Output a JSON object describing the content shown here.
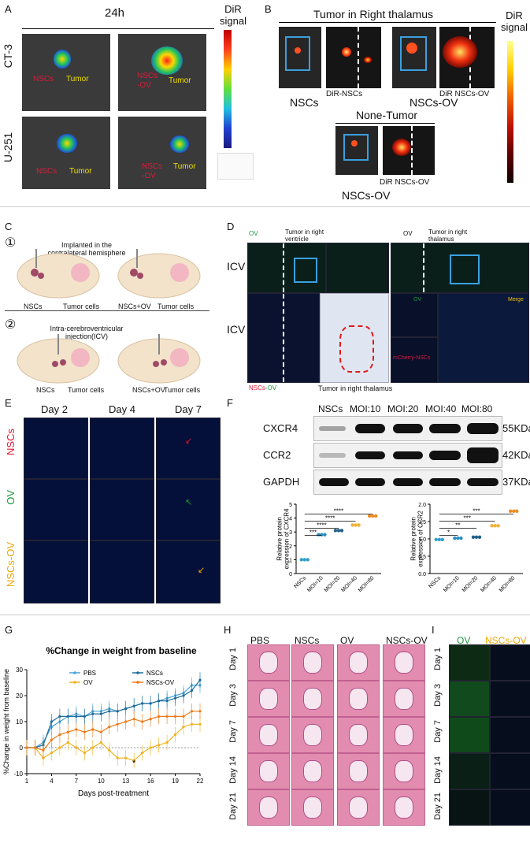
{
  "panels": {
    "A": "A",
    "B": "B",
    "C": "C",
    "D": "D",
    "E": "E",
    "F": "F",
    "G": "G",
    "H": "H",
    "I": "I"
  },
  "panelA": {
    "time": "24h",
    "rows": [
      "CT-3",
      "U-251"
    ],
    "labels": {
      "nscs": "NSCs",
      "nscs_ov": "NSCs-OV",
      "nscs_ov_split": "NSCs\n-OV",
      "tumor": "Tumor"
    },
    "scale_title": "DiR signal"
  },
  "panelB": {
    "title_top": "Tumor in Right thalamus",
    "title_bottom": "None-Tumor",
    "captions": [
      "NSCs",
      "NSCs-OV",
      "NSCs-OV"
    ],
    "sub": [
      "DiR-NSCs",
      "DiR NSCs-OV",
      "DiR NSCs-OV"
    ],
    "scale_title": "DiR signal"
  },
  "panelC": {
    "step1": "①",
    "step2": "②",
    "step1_text": "Implanted in the contralateral hemisphere",
    "step2_text": "Intra-cerebroventricular injection(ICV)",
    "labels": [
      "NSCs",
      "Tumor cells",
      "NSCs+OV",
      "Tumor cells",
      "NSCs",
      "Tumor cells",
      "NSCs+OV",
      "Tumor cells"
    ]
  },
  "panelD": {
    "ov": "OV",
    "top_left_title": "Tumor in right ventricle",
    "top_right_title": "Tumor in right thalamus",
    "row_label": "ICV",
    "bottom_caption": "Tumor in right thalamus",
    "nscs_ov": "NSCs-OV",
    "nscs_part": "NSCs",
    "ov_part": "-OV",
    "mcherry": "mCherry-NSCs",
    "merge": "Merge"
  },
  "panelE": {
    "days": [
      "Day 2",
      "Day 4",
      "Day 7"
    ],
    "rows": [
      "NSCs",
      "OV",
      "NSCs-OV"
    ],
    "row_colors": [
      "#e0162b",
      "#1a9a3a",
      "#f0a800"
    ]
  },
  "panelF": {
    "lanes": [
      "NSCs",
      "MOI:10",
      "MOI:20",
      "MOI:40",
      "MOI:80"
    ],
    "proteins": [
      {
        "name": "CXCR4",
        "kda": "55KDa"
      },
      {
        "name": "CCR2",
        "kda": "42KDa"
      },
      {
        "name": "GAPDH",
        "kda": "37KDa"
      }
    ]
  },
  "chart_data": [
    {
      "type": "scatter",
      "title": "",
      "ylabel": "Relative protein expression of CXCR4",
      "categories": [
        "NSCs",
        "MOI=10",
        "MOI=20",
        "MOI=40",
        "MOI=80"
      ],
      "values": [
        1.0,
        2.8,
        3.1,
        3.5,
        4.15
      ],
      "ylim": [
        0,
        5
      ],
      "yticks": [
        "0",
        "1",
        "2",
        "3",
        "4",
        "5"
      ],
      "significance": [
        "***",
        "****",
        "****",
        "****"
      ],
      "colors": [
        "#2fa0c8",
        "#2a8fbf",
        "#1f5f8b",
        "#f0b23a",
        "#f08a1e"
      ]
    },
    {
      "type": "scatter",
      "title": "",
      "ylabel": "Relative protein expression of CCR2",
      "categories": [
        "NSCs",
        "MOI=10",
        "MOI=20",
        "MOI=40",
        "MOI=80"
      ],
      "values": [
        0.98,
        1.02,
        1.05,
        1.38,
        1.8
      ],
      "ylim": [
        0,
        2.0
      ],
      "yticks": [
        "0.0",
        "0.5",
        "1.0",
        "1.5",
        "2.0"
      ],
      "significance": [
        "*",
        "**",
        "***",
        "***"
      ],
      "colors": [
        "#2fa0c8",
        "#2a8fbf",
        "#1f5f8b",
        "#f0b23a",
        "#f08a1e"
      ]
    },
    {
      "type": "line",
      "title": "%Change in weight from baseline",
      "xlabel": "Days post-treatment",
      "ylabel": "%Change in weight from baseline",
      "xticks": [
        1,
        4,
        7,
        10,
        13,
        16,
        19,
        22
      ],
      "ylim": [
        -10,
        30
      ],
      "yticks": [
        "-10",
        "0",
        "10",
        "20",
        "30"
      ],
      "annotation": "*",
      "legend": [
        "PBS",
        "NSCs",
        "OV",
        "NSCs-OV"
      ],
      "series": [
        {
          "name": "PBS",
          "color": "#4aa3d8",
          "x": [
            1,
            2,
            3,
            4,
            5,
            6,
            7,
            8,
            9,
            10,
            11,
            12,
            13,
            14,
            15,
            16,
            17,
            18,
            19,
            20,
            21,
            22
          ],
          "y": [
            0,
            0,
            2,
            8,
            10,
            12,
            13,
            12,
            14,
            14,
            15,
            14,
            15,
            16,
            17,
            17,
            18,
            19,
            20,
            21,
            24,
            24
          ]
        },
        {
          "name": "NSCs",
          "color": "#1d6b9c",
          "x": [
            1,
            2,
            3,
            4,
            5,
            6,
            7,
            8,
            9,
            10,
            11,
            12,
            13,
            14,
            15,
            16,
            17,
            18,
            19,
            20,
            21,
            22
          ],
          "y": [
            0,
            0,
            1,
            10,
            12,
            12,
            12,
            12,
            13,
            13,
            14,
            14,
            15,
            16,
            17,
            17,
            18,
            18,
            19,
            20,
            22,
            26
          ]
        },
        {
          "name": "OV",
          "color": "#f2b21c",
          "x": [
            1,
            2,
            3,
            4,
            5,
            6,
            7,
            8,
            9,
            10,
            11,
            12,
            13,
            14,
            15,
            16,
            17,
            18,
            19,
            20,
            21,
            22
          ],
          "y": [
            0,
            0,
            -4,
            -2,
            0,
            2,
            0,
            -2,
            0,
            2,
            -1,
            -4,
            -4,
            -5,
            -2,
            0,
            1,
            2,
            5,
            8,
            9,
            9
          ]
        },
        {
          "name": "NSCs-OV",
          "color": "#f07a18",
          "x": [
            1,
            2,
            3,
            4,
            5,
            6,
            7,
            8,
            9,
            10,
            11,
            12,
            13,
            14,
            15,
            16,
            17,
            18,
            19,
            20,
            21,
            22
          ],
          "y": [
            0,
            0,
            -1,
            3,
            5,
            6,
            7,
            6,
            7,
            6,
            8,
            9,
            10,
            11,
            10,
            11,
            12,
            12,
            12,
            12,
            14,
            14
          ]
        }
      ]
    }
  ],
  "panelH": {
    "cols": [
      "PBS",
      "NSCs",
      "OV",
      "NSCs-OV"
    ],
    "rows": [
      "Day 1",
      "Day 3",
      "Day 7",
      "Day 14",
      "Day 21"
    ]
  },
  "panelI": {
    "cols": [
      "OV",
      "NSCs-OV"
    ],
    "col_colors": [
      "#1a9a3a",
      "#f0a800"
    ],
    "rows": [
      "Day 1",
      "Day 3",
      "Day 7",
      "Day 14",
      "Day 21"
    ]
  }
}
